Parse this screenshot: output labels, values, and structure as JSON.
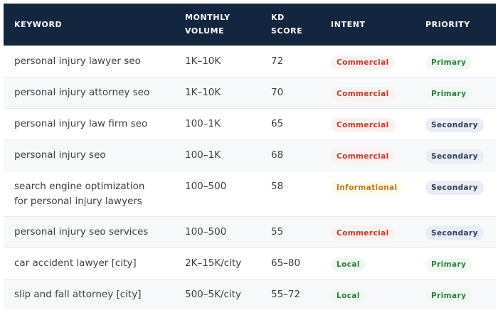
{
  "table": {
    "headers": {
      "keyword": "KEYWORD",
      "volume_l1": "MONTHLY",
      "volume_l2": "VOLUME",
      "kd_l1": "KD",
      "kd_l2": "SCORE",
      "intent": "INTENT",
      "priority": "PRIORITY"
    },
    "rows": [
      {
        "keyword": "personal injury lawyer seo",
        "volume": "1K–10K",
        "kd": "72",
        "intent": "Commercial",
        "priority": "Primary"
      },
      {
        "keyword": "personal injury attorney seo",
        "volume": "1K–10K",
        "kd": "70",
        "intent": "Commercial",
        "priority": "Primary"
      },
      {
        "keyword": "personal injury law firm seo",
        "volume": "100–1K",
        "kd": "65",
        "intent": "Commercial",
        "priority": "Secondary"
      },
      {
        "keyword": "personal injury seo",
        "volume": "100–1K",
        "kd": "68",
        "intent": "Commercial",
        "priority": "Secondary"
      },
      {
        "keyword_l1": "search engine optimization",
        "keyword_l2": "for personal injury lawyers",
        "volume": "100–500",
        "kd": "58",
        "intent": "Informational",
        "priority": "Secondary"
      },
      {
        "keyword": "personal injury seo services",
        "volume": "100–500",
        "kd": "55",
        "intent": "Commercial",
        "priority": "Secondary"
      },
      {
        "keyword": "car accident lawyer [city]",
        "volume": "2K–15K/city",
        "kd": "65–80",
        "intent": "Local",
        "priority": "Primary"
      },
      {
        "keyword": "slip and fall attorney [city]",
        "volume": "500–5K/city",
        "kd": "55–72",
        "intent": "Local",
        "priority": "Primary"
      }
    ]
  },
  "colors": {
    "header_bg": "#12263f",
    "commercial": "#c0392b",
    "informational": "#b7791f",
    "local": "#2f7a3e",
    "primary": "#2f7a3e",
    "secondary": "#2f3b55"
  }
}
